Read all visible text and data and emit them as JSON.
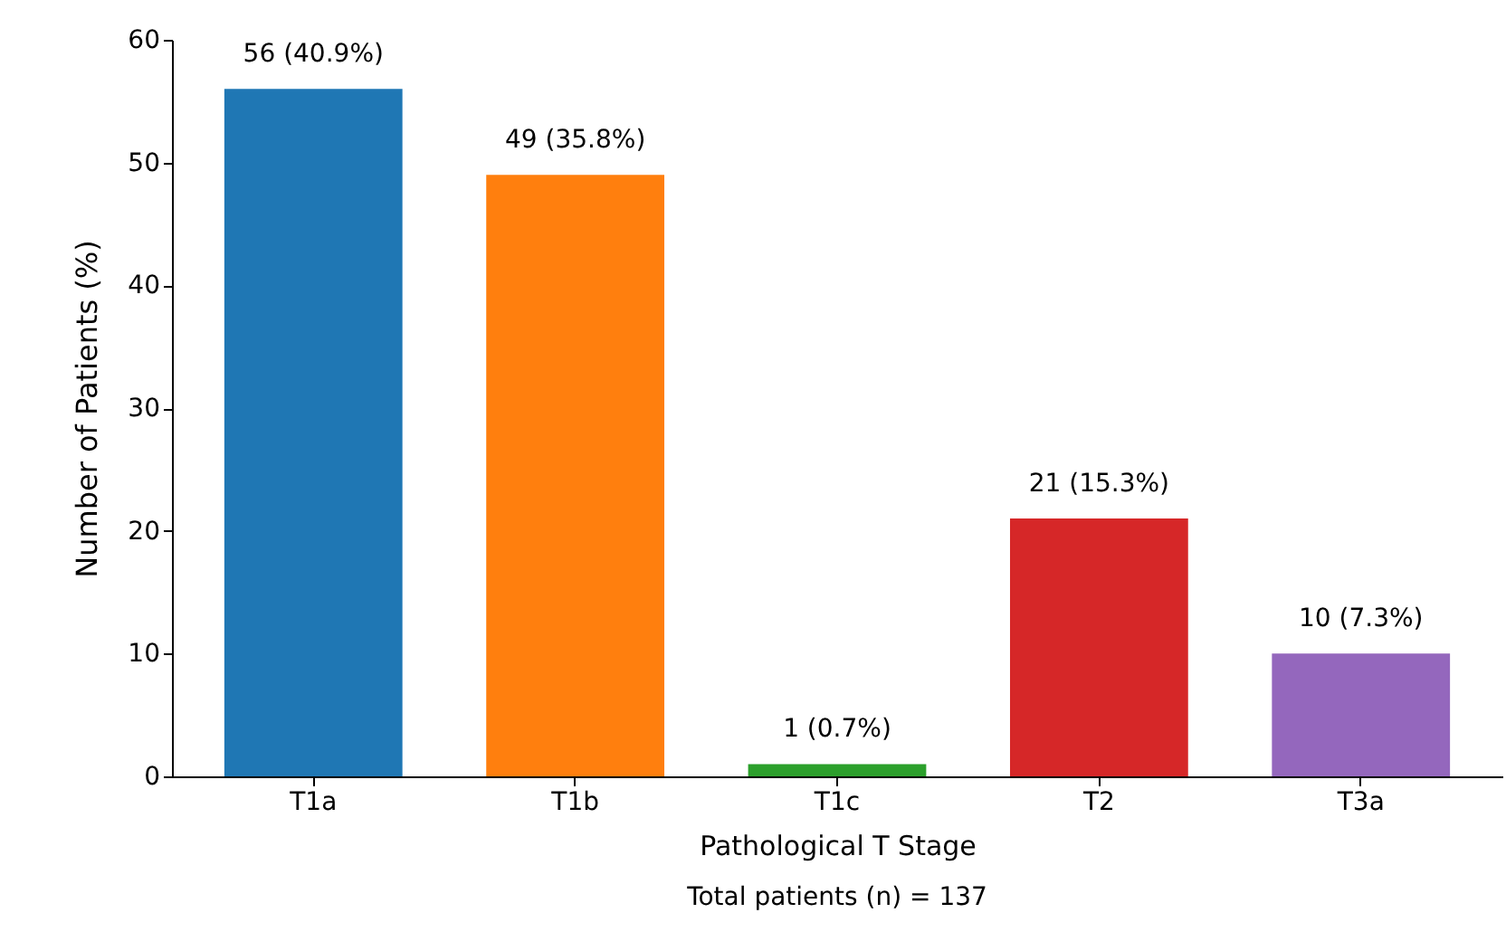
{
  "chart_data": {
    "type": "bar",
    "xlabel": "Pathological T Stage",
    "ylabel": "Number of Patients (%)",
    "categories": [
      "T1a",
      "T1b",
      "T1c",
      "T2",
      "T3a"
    ],
    "values": [
      56,
      49,
      1,
      21,
      10
    ],
    "colors": [
      "#1f77b4",
      "#ff7f0e",
      "#2ca02c",
      "#d62728",
      "#9467bd"
    ],
    "value_labels": [
      "56 (40.9%)",
      "49 (35.8%)",
      "1 (0.7%)",
      "21 (15.3%)",
      "10 (7.3%)"
    ],
    "ylim": [
      0,
      60
    ],
    "yticks": [
      0,
      10,
      20,
      30,
      40,
      50,
      60
    ],
    "grid": false,
    "legend": false,
    "annotations": [
      "Total patients (n) = 137"
    ]
  }
}
